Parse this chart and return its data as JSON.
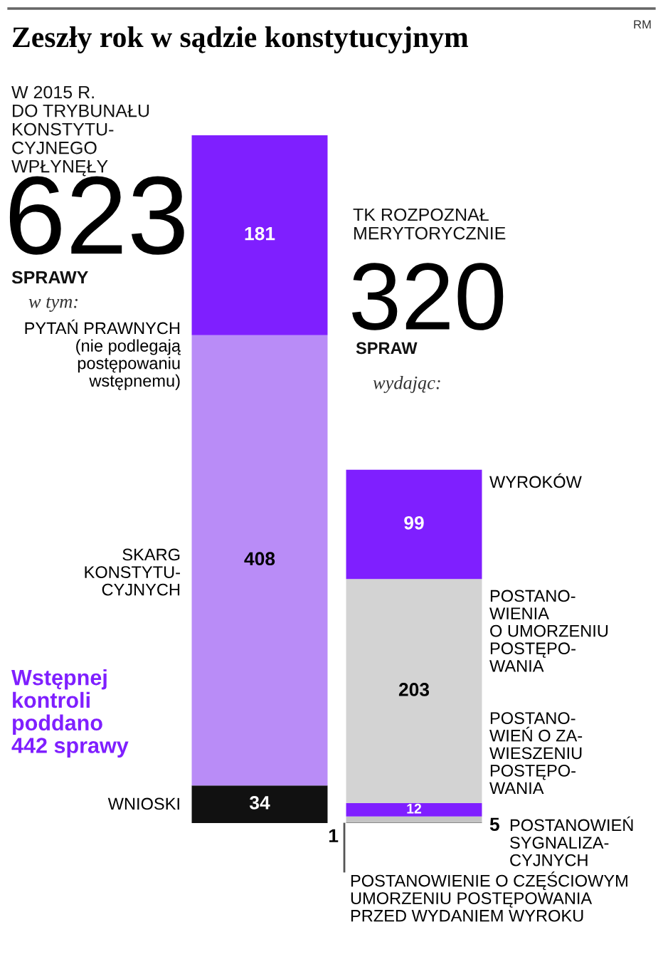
{
  "chart_data": {
    "type": "bar",
    "stacked": true,
    "title": "Zeszły rok w sądzie konstytucyjnym",
    "categories": [
      null,
      null
    ],
    "series": [
      {
        "name": "WNIOSKI",
        "color": "#111111",
        "values": [
          34,
          null
        ]
      },
      {
        "name": "SKARG\nKONSTYTU-\nCYJNYCH",
        "color": "#b98cf7",
        "values": [
          408,
          null
        ]
      },
      {
        "name": "PYTAŃ PRAWNYCH\n(nie podlegają\npostępowaniu\nwstępnemu)",
        "color": "#7f1fff",
        "values": [
          181,
          null
        ]
      },
      {
        "name": "POSTANOWIENIE O CZĘŚCIOWYM\nUMORZENIU POSTĘPOWANIA\nPRZED WYDANIEM WYROKU",
        "color": "#8a8a8a",
        "values": [
          null,
          1
        ]
      },
      {
        "name": "POSTANOWIEŃ\nSYGNALIZA-\nCYJNYCH",
        "color": "#c4c4c4",
        "values": [
          null,
          5
        ]
      },
      {
        "name": "POSTANO-\nWIEŃ O ZA-\nWIESZENIU\nPOSTĘPO-\nWANIA",
        "color": "#7f1fff",
        "values": [
          null,
          12
        ]
      },
      {
        "name": "POSTANO-\nWIENIA\nO UMORZENIU\nPOSTĘPO-\nWANIA",
        "color": "#d3d3d3",
        "values": [
          null,
          203
        ]
      },
      {
        "name": "WYROKÓW",
        "color": "#7f1fff",
        "values": [
          null,
          99
        ]
      }
    ],
    "data_labels": true,
    "totals": [
      "623",
      "320"
    ],
    "annotations": [
      "RM",
      "W 2015 R.\nDO TRYBUNAŁU\nKONSTYTU-\nCYJNEGO\nWPŁYNĘŁY",
      "SPRAWY",
      "w tym:",
      "TK ROZPOZNAŁ\nMERYTORYCZNIE",
      "SPRAW",
      "wydając:",
      "Wstępnej\nkontroli\npoddano\n442 sprawy"
    ]
  }
}
